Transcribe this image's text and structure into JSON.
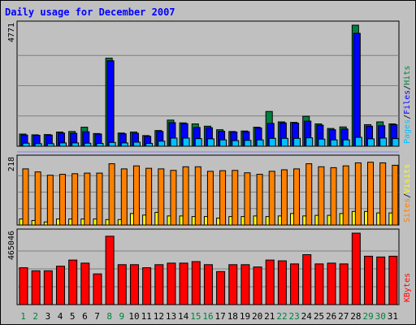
{
  "chart_data": {
    "type": "bar",
    "title": "Daily usage for December 2007",
    "days": [
      "1",
      "2",
      "3",
      "4",
      "5",
      "6",
      "7",
      "8",
      "9",
      "10",
      "11",
      "12",
      "13",
      "14",
      "15",
      "16",
      "17",
      "18",
      "19",
      "20",
      "21",
      "22",
      "23",
      "24",
      "25",
      "26",
      "27",
      "28",
      "29",
      "30",
      "31"
    ],
    "weekend_days": [
      "1",
      "2",
      "8",
      "9",
      "15",
      "16",
      "22",
      "23",
      "29",
      "30"
    ],
    "colors": {
      "background": "#c0c0c0",
      "title": "#0000ff",
      "axis_text": "#000000",
      "weekday_label": "#000000",
      "weekend_label": "#008040",
      "hits": "#008040",
      "files": "#0000ff",
      "pages": "#00c0ff",
      "sites": "#ff8000",
      "visits": "#ffff00",
      "kbytes": "#ff0000",
      "separator": "#8080ff"
    },
    "panels": [
      {
        "key": "hits_files_pages",
        "max_label": "4771",
        "ymax": 4771,
        "legend": [
          {
            "text": "Pages",
            "color_key": "pages"
          },
          {
            "text": "/",
            "color_key": "axis_text"
          },
          {
            "text": "Files",
            "color_key": "files"
          },
          {
            "text": "/",
            "color_key": "axis_text"
          },
          {
            "text": "Hits",
            "color_key": "hits"
          }
        ],
        "series": [
          {
            "name": "Hits",
            "color_key": "hits",
            "values": [
              480,
              450,
              460,
              560,
              580,
              750,
              500,
              3470,
              520,
              560,
              420,
              620,
              1030,
              920,
              880,
              790,
              650,
              580,
              600,
              750,
              1370,
              960,
              940,
              1180,
              880,
              700,
              760,
              4771,
              850,
              960,
              880
            ]
          },
          {
            "name": "Files",
            "color_key": "files",
            "values": [
              440,
              430,
              440,
              520,
              510,
              570,
              480,
              3370,
              490,
              510,
              390,
              580,
              930,
              890,
              740,
              730,
              590,
              560,
              570,
              720,
              900,
              920,
              910,
              990,
              830,
              650,
              680,
              4450,
              790,
              810,
              850
            ]
          },
          {
            "name": "Pages",
            "color_key": "pages",
            "values": [
              120,
              100,
              100,
              130,
              130,
              120,
              110,
              150,
              130,
              160,
              110,
              200,
              320,
              320,
              300,
              290,
              250,
              220,
              230,
              250,
              310,
              310,
              310,
              330,
              280,
              250,
              250,
              350,
              290,
              320,
              300
            ]
          }
        ]
      },
      {
        "key": "sites_visits",
        "max_label": "218",
        "ymax": 218,
        "legend": [
          {
            "text": "Sites",
            "color_key": "sites"
          },
          {
            "text": "/",
            "color_key": "axis_text"
          },
          {
            "text": "Visits",
            "color_key": "visits"
          }
        ],
        "series": [
          {
            "name": "Visits",
            "color_key": "visits",
            "values": [
              20,
              15,
              10,
              20,
              20,
              20,
              20,
              18,
              18,
              38,
              33,
              42,
              30,
              30,
              28,
              28,
              23,
              28,
              28,
              30,
              28,
              30,
              38,
              30,
              32,
              32,
              38,
              45,
              45,
              40,
              40
            ]
          },
          {
            "name": "Sites",
            "color_key": "sites",
            "values": [
              186,
              176,
              165,
              168,
              170,
              172,
              172,
              203,
              186,
              196,
              188,
              186,
              181,
              193,
              193,
              178,
              180,
              181,
              173,
              168,
              178,
              183,
              186,
              203,
              193,
              190,
              196,
              206,
              208,
              206,
              198
            ]
          }
        ]
      },
      {
        "key": "kbytes",
        "max_label": "465046",
        "ymax": 465046,
        "legend": [
          {
            "text": "KBytes",
            "color_key": "kbytes"
          }
        ],
        "series": [
          {
            "name": "KBytes",
            "color_key": "kbytes",
            "values": [
              240000,
              220000,
              220000,
              250000,
              290000,
              270000,
              200000,
              445000,
              260000,
              260000,
              240000,
              260000,
              270000,
              270000,
              280000,
              260000,
              215000,
              260000,
              260000,
              245000,
              290000,
              285000,
              265000,
              325000,
              265000,
              270000,
              265000,
              465046,
              315000,
              310000,
              315000
            ]
          }
        ]
      }
    ]
  }
}
